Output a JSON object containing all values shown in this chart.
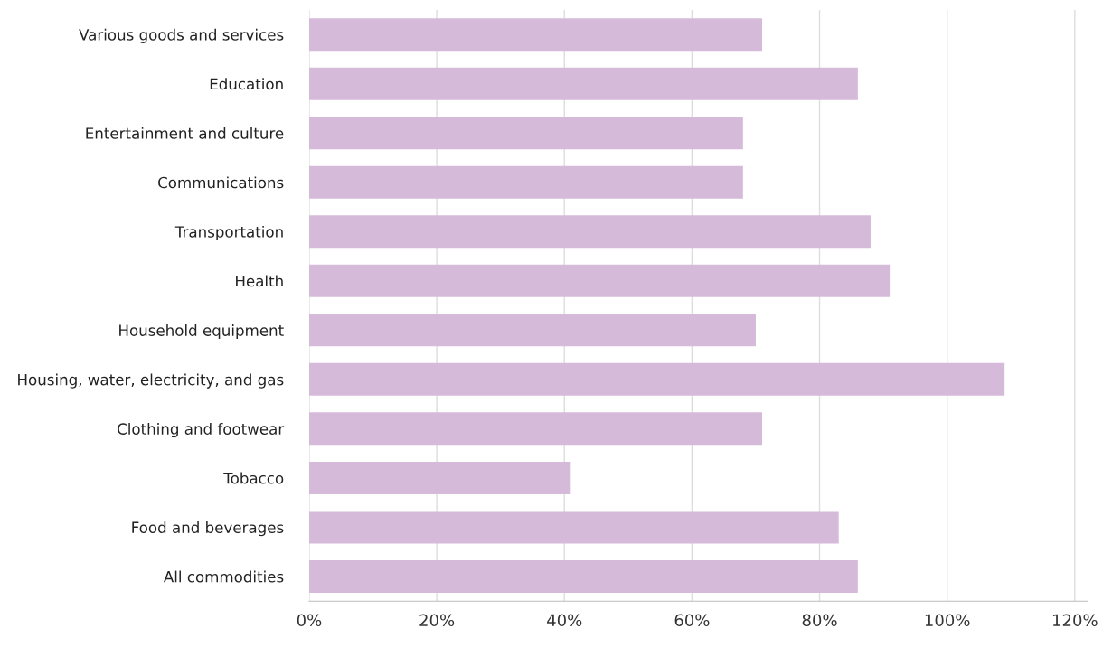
{
  "chart_data": {
    "type": "bar",
    "orientation": "horizontal",
    "categories": [
      "Various goods and services",
      "Education",
      "Entertainment and culture",
      "Communications",
      "Transportation",
      "Health",
      "Household equipment",
      "Housing, water, electricity, and gas",
      "Clothing and footwear",
      "Tobacco",
      "Food and beverages",
      "All commodities"
    ],
    "values": [
      71,
      86,
      68,
      68,
      88,
      91,
      70,
      109,
      71,
      41,
      83,
      86
    ],
    "color": "#d6bad9",
    "xlim": [
      0,
      122
    ],
    "xticks": [
      {
        "value": 0,
        "label": "0%"
      },
      {
        "value": 20,
        "label": "20%"
      },
      {
        "value": 40,
        "label": "40%"
      },
      {
        "value": 60,
        "label": "60%"
      },
      {
        "value": 80,
        "label": "80%"
      },
      {
        "value": 100,
        "label": "100%"
      },
      {
        "value": 120,
        "label": "120%"
      }
    ],
    "grid": "x",
    "legend": false
  }
}
